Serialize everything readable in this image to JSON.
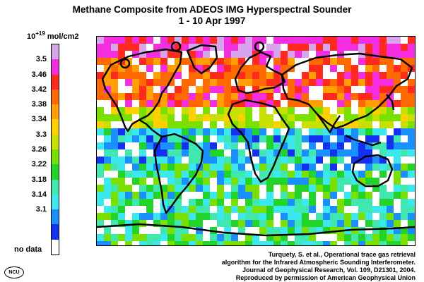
{
  "title_line1": "Methane Composite from ADEOS IMG Hyperspectral Sounder",
  "title_line2": "1 - 10 Apr 1997",
  "unit_base": "10",
  "unit_exponent": "+19",
  "unit_text": "mol/cm2",
  "legend": {
    "ticks": [
      "3.5",
      "3.46",
      "3.42",
      "3.38",
      "3.34",
      "3.3",
      "3.26",
      "3.22",
      "3.18",
      "3.14",
      "3.1"
    ],
    "colors": [
      "#d8a4ec",
      "#f42ee0",
      "#ff2a1e",
      "#ff6a00",
      "#ffa000",
      "#ffd000",
      "#c8e000",
      "#7ae000",
      "#22d42a",
      "#40e8b0",
      "#3ae8ee",
      "#1a90ff",
      "#1430f0"
    ],
    "no_data_label": "no data",
    "no_data_color": "#ffffff"
  },
  "citation": [
    "Turquety, S. et al., Operational trace gas retrieval",
    "algorithm for the Infrared Atmospheric Sounding Interferometer.",
    "Journal of Geophysical Research, Vol. 109, D21301, 2004.",
    "Reproduced by permission of American Geophysical Union"
  ],
  "logo_text": "NCU"
}
